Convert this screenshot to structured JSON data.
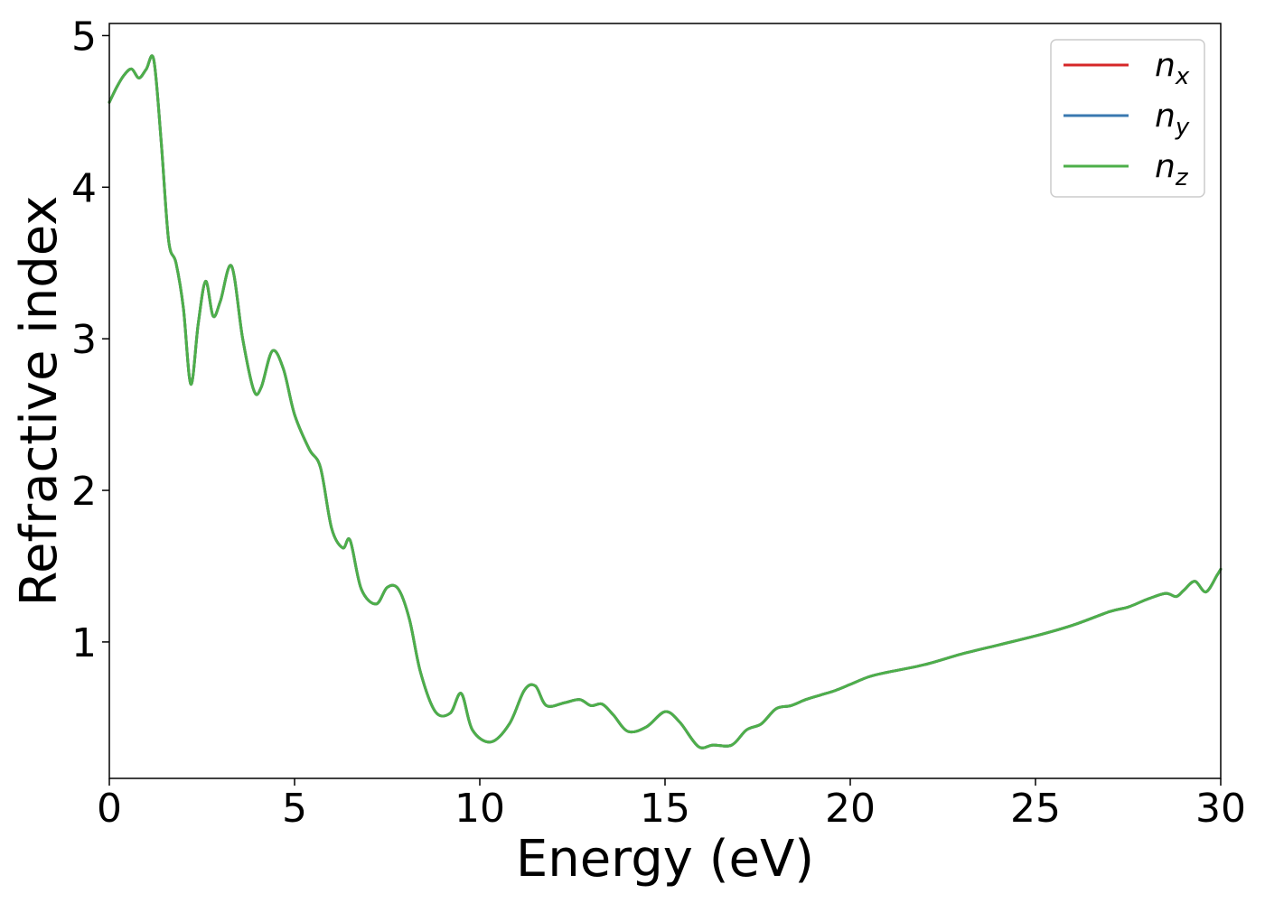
{
  "chart_data": {
    "type": "line",
    "title": "",
    "xlabel": "Energy (eV)",
    "ylabel": "Refractive index",
    "xlim": [
      0,
      30
    ],
    "ylim": [
      0.1,
      5.08
    ],
    "xticks": [
      0,
      5,
      10,
      15,
      20,
      25,
      30
    ],
    "yticks": [
      1,
      2,
      3,
      4,
      5
    ],
    "grid": false,
    "legend_position": "top-right",
    "series": [
      {
        "name": "n",
        "subscript": "x",
        "color": "#d62728",
        "x": [
          0,
          0.2,
          0.4,
          0.6,
          0.8,
          1.0,
          1.2,
          1.4,
          1.6,
          1.8,
          2.0,
          2.2,
          2.4,
          2.6,
          2.8,
          3.0,
          3.3,
          3.6,
          3.9,
          4.1,
          4.4,
          4.7,
          5.0,
          5.4,
          5.7,
          6.0,
          6.3,
          6.5,
          6.8,
          7.2,
          7.5,
          7.8,
          8.1,
          8.4,
          8.8,
          9.2,
          9.5,
          9.8,
          10.3,
          10.8,
          11.2,
          11.5,
          11.8,
          12.3,
          12.7,
          13.0,
          13.3,
          13.6,
          14.0,
          14.5,
          15.0,
          15.4,
          15.9,
          16.3,
          16.8,
          17.2,
          17.6,
          18.0,
          18.4,
          18.8,
          19.2,
          19.6,
          20.0,
          20.5,
          21.0,
          22.0,
          23.0,
          24.0,
          25.0,
          26.0,
          27.0,
          27.5,
          28.0,
          28.5,
          28.8,
          29.0,
          29.3,
          29.6,
          29.9,
          30.0
        ],
        "y": [
          4.56,
          4.66,
          4.74,
          4.78,
          4.72,
          4.78,
          4.84,
          4.3,
          3.65,
          3.5,
          3.2,
          2.7,
          3.1,
          3.38,
          3.15,
          3.25,
          3.48,
          3.0,
          2.66,
          2.68,
          2.92,
          2.8,
          2.5,
          2.27,
          2.15,
          1.75,
          1.62,
          1.67,
          1.35,
          1.25,
          1.36,
          1.35,
          1.15,
          0.8,
          0.54,
          0.53,
          0.66,
          0.42,
          0.34,
          0.46,
          0.68,
          0.71,
          0.58,
          0.6,
          0.62,
          0.58,
          0.59,
          0.52,
          0.41,
          0.44,
          0.54,
          0.47,
          0.31,
          0.32,
          0.32,
          0.42,
          0.46,
          0.56,
          0.58,
          0.62,
          0.65,
          0.68,
          0.72,
          0.77,
          0.8,
          0.85,
          0.92,
          0.98,
          1.04,
          1.11,
          1.2,
          1.23,
          1.28,
          1.32,
          1.3,
          1.34,
          1.4,
          1.33,
          1.44,
          1.48
        ]
      },
      {
        "name": "n",
        "subscript": "y",
        "color": "#3a78b0",
        "x": [
          0,
          0.2,
          0.4,
          0.6,
          0.8,
          1.0,
          1.2,
          1.4,
          1.6,
          1.8,
          2.0,
          2.2,
          2.4,
          2.6,
          2.8,
          3.0,
          3.3,
          3.6,
          3.9,
          4.1,
          4.4,
          4.7,
          5.0,
          5.4,
          5.7,
          6.0,
          6.3,
          6.5,
          6.8,
          7.2,
          7.5,
          7.8,
          8.1,
          8.4,
          8.8,
          9.2,
          9.5,
          9.8,
          10.3,
          10.8,
          11.2,
          11.5,
          11.8,
          12.3,
          12.7,
          13.0,
          13.3,
          13.6,
          14.0,
          14.5,
          15.0,
          15.4,
          15.9,
          16.3,
          16.8,
          17.2,
          17.6,
          18.0,
          18.4,
          18.8,
          19.2,
          19.6,
          20.0,
          20.5,
          21.0,
          22.0,
          23.0,
          24.0,
          25.0,
          26.0,
          27.0,
          27.5,
          28.0,
          28.5,
          28.8,
          29.0,
          29.3,
          29.6,
          29.9,
          30.0
        ],
        "y": [
          4.56,
          4.66,
          4.74,
          4.78,
          4.72,
          4.78,
          4.84,
          4.3,
          3.65,
          3.5,
          3.2,
          2.7,
          3.1,
          3.38,
          3.15,
          3.25,
          3.48,
          3.0,
          2.66,
          2.68,
          2.92,
          2.8,
          2.5,
          2.27,
          2.15,
          1.75,
          1.62,
          1.67,
          1.35,
          1.25,
          1.36,
          1.35,
          1.15,
          0.8,
          0.54,
          0.53,
          0.66,
          0.42,
          0.34,
          0.46,
          0.68,
          0.71,
          0.58,
          0.6,
          0.62,
          0.58,
          0.59,
          0.52,
          0.41,
          0.44,
          0.54,
          0.47,
          0.31,
          0.32,
          0.32,
          0.42,
          0.46,
          0.56,
          0.58,
          0.62,
          0.65,
          0.68,
          0.72,
          0.77,
          0.8,
          0.85,
          0.92,
          0.98,
          1.04,
          1.11,
          1.2,
          1.23,
          1.28,
          1.32,
          1.3,
          1.34,
          1.4,
          1.33,
          1.44,
          1.48
        ]
      },
      {
        "name": "n",
        "subscript": "z",
        "color": "#4daf4a",
        "x": [
          0,
          0.2,
          0.4,
          0.6,
          0.8,
          1.0,
          1.2,
          1.4,
          1.6,
          1.8,
          2.0,
          2.2,
          2.4,
          2.6,
          2.8,
          3.0,
          3.3,
          3.6,
          3.9,
          4.1,
          4.4,
          4.7,
          5.0,
          5.4,
          5.7,
          6.0,
          6.3,
          6.5,
          6.8,
          7.2,
          7.5,
          7.8,
          8.1,
          8.4,
          8.8,
          9.2,
          9.5,
          9.8,
          10.3,
          10.8,
          11.2,
          11.5,
          11.8,
          12.3,
          12.7,
          13.0,
          13.3,
          13.6,
          14.0,
          14.5,
          15.0,
          15.4,
          15.9,
          16.3,
          16.8,
          17.2,
          17.6,
          18.0,
          18.4,
          18.8,
          19.2,
          19.6,
          20.0,
          20.5,
          21.0,
          22.0,
          23.0,
          24.0,
          25.0,
          26.0,
          27.0,
          27.5,
          28.0,
          28.5,
          28.8,
          29.0,
          29.3,
          29.6,
          29.9,
          30.0
        ],
        "y": [
          4.56,
          4.66,
          4.74,
          4.78,
          4.72,
          4.78,
          4.84,
          4.3,
          3.65,
          3.5,
          3.2,
          2.7,
          3.1,
          3.38,
          3.15,
          3.25,
          3.48,
          3.0,
          2.66,
          2.68,
          2.92,
          2.8,
          2.5,
          2.27,
          2.15,
          1.75,
          1.62,
          1.67,
          1.35,
          1.25,
          1.36,
          1.35,
          1.15,
          0.8,
          0.54,
          0.53,
          0.66,
          0.42,
          0.34,
          0.46,
          0.68,
          0.71,
          0.58,
          0.6,
          0.62,
          0.58,
          0.59,
          0.52,
          0.41,
          0.44,
          0.54,
          0.47,
          0.31,
          0.32,
          0.32,
          0.42,
          0.46,
          0.56,
          0.58,
          0.62,
          0.65,
          0.68,
          0.72,
          0.77,
          0.8,
          0.85,
          0.92,
          0.98,
          1.04,
          1.11,
          1.2,
          1.23,
          1.28,
          1.32,
          1.3,
          1.34,
          1.4,
          1.33,
          1.44,
          1.48
        ]
      }
    ]
  }
}
